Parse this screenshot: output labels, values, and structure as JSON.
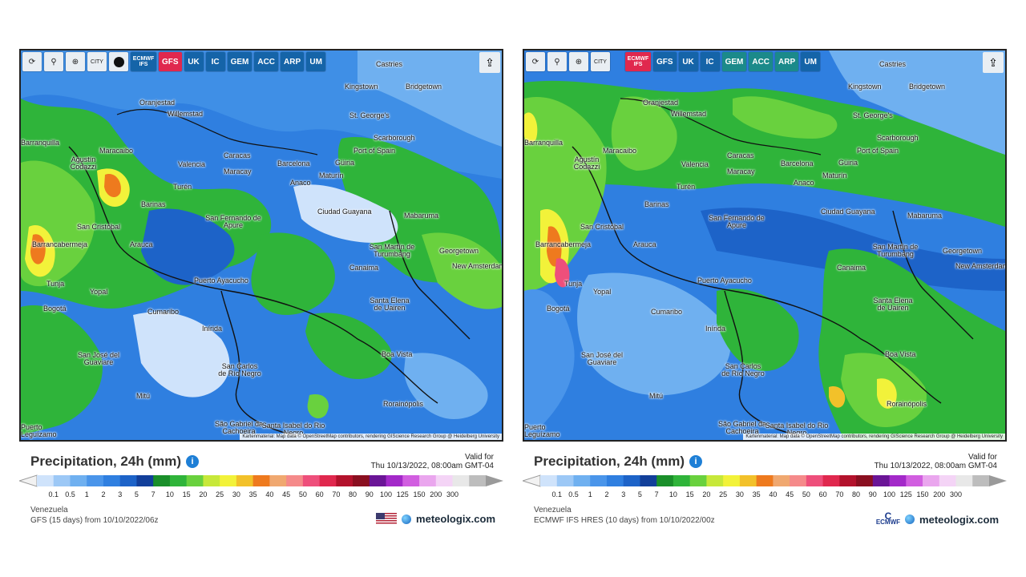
{
  "toolbar_icons": [
    "refresh-icon",
    "location-pin-icon",
    "zoom-icon",
    "city-labels-icon",
    "dot-icon",
    "share-icon"
  ],
  "left": {
    "toolbar": {
      "city_label": "CITY",
      "models": [
        {
          "label": "ECMWF IFS",
          "active": false
        },
        {
          "label": "GFS",
          "active": true
        },
        {
          "label": "UK",
          "active": false
        },
        {
          "label": "IC",
          "active": false
        },
        {
          "label": "GEM",
          "active": false
        },
        {
          "label": "ACC",
          "active": false
        },
        {
          "label": "ARP",
          "active": false
        },
        {
          "label": "UM",
          "active": false
        }
      ]
    },
    "title": "Precipitation, 24h (mm)",
    "valid_label": "Valid for",
    "valid_time": "Thu 10/13/2022, 08:00am GMT-04",
    "region": "Venezuela",
    "model_run": "GFS (15 days) from 10/10/2022/06z",
    "brand": "meteologix.com"
  },
  "right": {
    "toolbar": {
      "city_label": "CITY",
      "models": [
        {
          "label": "ECMWF IFS",
          "active": true
        },
        {
          "label": "GFS",
          "active": false
        },
        {
          "label": "UK",
          "active": false
        },
        {
          "label": "IC",
          "active": false
        },
        {
          "label": "GEM",
          "active": false
        },
        {
          "label": "ACC",
          "active": false
        },
        {
          "label": "ARP",
          "active": false
        },
        {
          "label": "UM",
          "active": false
        }
      ]
    },
    "title": "Precipitation, 24h (mm)",
    "valid_label": "Valid for",
    "valid_time": "Thu 10/13/2022, 08:00am GMT-04",
    "region": "Venezuela",
    "model_run": "ECMWF IFS HRES (10 days) from 10/10/2022/00z",
    "brand": "meteologix.com",
    "logo_text": "ECMWF"
  },
  "attribution": "Kartenmaterial: Map data © OpenStreetMap contributors, rendering GIScience Research Group @ Heidelberg University",
  "cities": [
    "Castries",
    "Kingstown",
    "Bridgetown",
    "Oranjestad",
    "Willemstad",
    "St. George's",
    "Scarborough",
    "Port of Spain",
    "Barranquilla",
    "Maracaibo",
    "Caracas",
    "Valencia",
    "Maracay",
    "Barcelona",
    "Güiria",
    "Maturín",
    "Agustín Codazzi",
    "Turén",
    "Anaco",
    "Barinas",
    "Ciudad Guayana",
    "Mabaruma",
    "San Cristóbal",
    "San Fernando de Apure",
    "Barrancabermeja",
    "Arauca",
    "San Martín de Turumbang",
    "Georgetown",
    "Canaima",
    "New Amsterdam",
    "Tunja",
    "Yopal",
    "Puerto Ayacucho",
    "Bogotá",
    "Santa Elena de Uairen",
    "Cumaribo",
    "Inírida",
    "San José del Guaviare",
    "Boa Vista",
    "San Carlos de Río Negro",
    "Mitú",
    "Rorainópolis",
    "São Gabriel da Cachoeira",
    "Santa Isabel do Rio Negro",
    "Puerto Leguízamo"
  ],
  "legend": {
    "ticks": [
      "0.1",
      "0.5",
      "1",
      "2",
      "3",
      "5",
      "7",
      "10",
      "15",
      "20",
      "25",
      "30",
      "35",
      "40",
      "45",
      "50",
      "60",
      "70",
      "80",
      "90",
      "100",
      "125",
      "150",
      "200",
      "300"
    ],
    "colors": [
      "#cfe3fb",
      "#9cc8f6",
      "#6fb0f0",
      "#4a95ea",
      "#2f7fe0",
      "#1d63c8",
      "#123f9a",
      "#1a8f2a",
      "#2fb43a",
      "#69d13e",
      "#c7e83a",
      "#f2f23a",
      "#f2c12a",
      "#ee7a1e",
      "#f0a870",
      "#f58a8a",
      "#ee4f7b",
      "#e0284e",
      "#b3122c",
      "#8a0f20",
      "#6a1596",
      "#a329c9",
      "#d15ee0",
      "#eaa6ee",
      "#f4d4f6",
      "#e8e8e8",
      "#bdbdbd"
    ]
  }
}
